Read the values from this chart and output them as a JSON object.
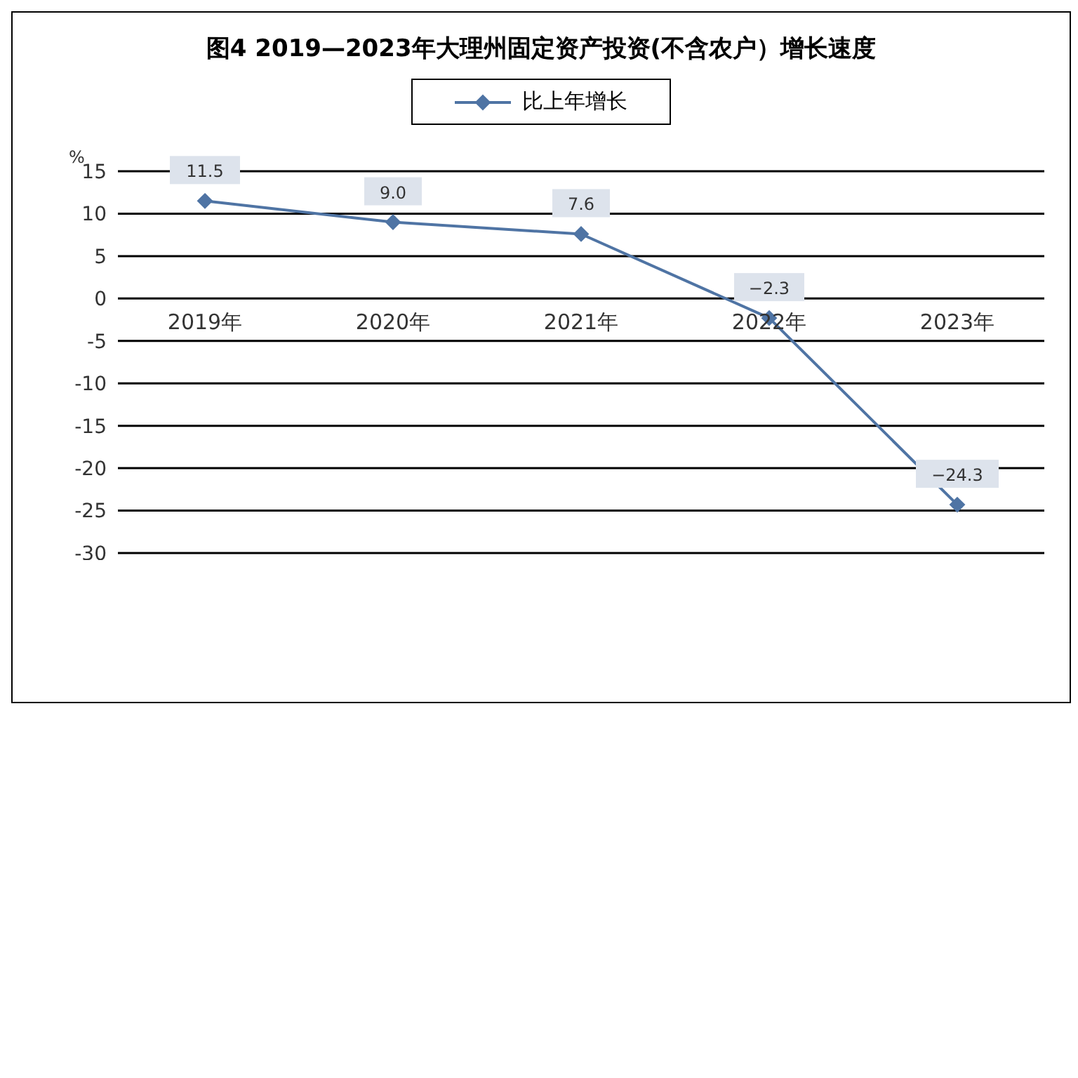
{
  "chart_data": {
    "type": "line",
    "title": "图4 2019—2023年大理州固定资产投资(不含农户）增长速度",
    "ylabel": "%",
    "categories": [
      "2019年",
      "2020年",
      "2021年",
      "2022年",
      "2023年"
    ],
    "series": [
      {
        "name": "比上年增长",
        "color": "#4f74a4",
        "values": [
          11.5,
          9.0,
          7.6,
          -2.3,
          -24.3
        ],
        "value_labels": [
          "11.5",
          "9.0",
          "7.6",
          "−2.3",
          "−24.3"
        ]
      }
    ],
    "ylim": [
      -30,
      15
    ],
    "yticks": [
      -30,
      -25,
      -20,
      -15,
      -10,
      -5,
      0,
      5,
      10,
      15
    ],
    "grid": "y",
    "legend": "top",
    "marker": "diamond",
    "line_style": "solid"
  }
}
